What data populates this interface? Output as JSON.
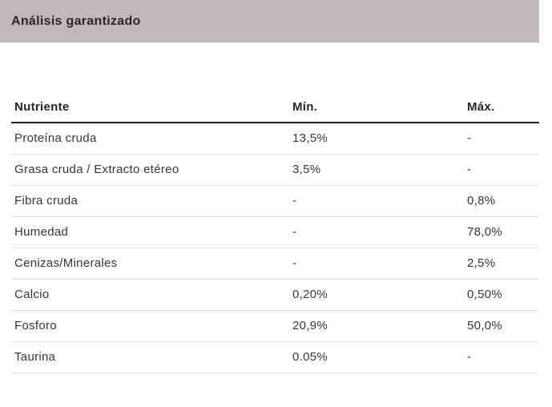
{
  "header": {
    "title": "Análisis garantizado"
  },
  "table": {
    "columns": {
      "nutrient": "Nutriente",
      "min": "Mín.",
      "max": "Máx."
    },
    "rows": [
      {
        "nutrient": "Proteína cruda",
        "min": "13,5%",
        "max": "-"
      },
      {
        "nutrient": "Grasa cruda / Extracto etéreo",
        "min": "3,5%",
        "max": "-"
      },
      {
        "nutrient": "Fibra cruda",
        "min": "-",
        "max": "0,8%"
      },
      {
        "nutrient": "Humedad",
        "min": "-",
        "max": "78,0%"
      },
      {
        "nutrient": "Cenizas/Minerales",
        "min": "-",
        "max": "2,5%"
      },
      {
        "nutrient": "Calcio",
        "min": "0,20%",
        "max": "0,50%"
      },
      {
        "nutrient": "Fosforo",
        "min": "20,9%",
        "max": "50,0%"
      },
      {
        "nutrient": "Taurina",
        "min": "0.05%",
        "max": "-"
      }
    ]
  },
  "colors": {
    "title_bar_bg": "#C3B8B9",
    "title_text": "#2D232B",
    "header_rule": "#211C26",
    "row_divider": "#E0E0E0",
    "body_text": "#39333F",
    "page_bg": "#FFFFFF"
  }
}
